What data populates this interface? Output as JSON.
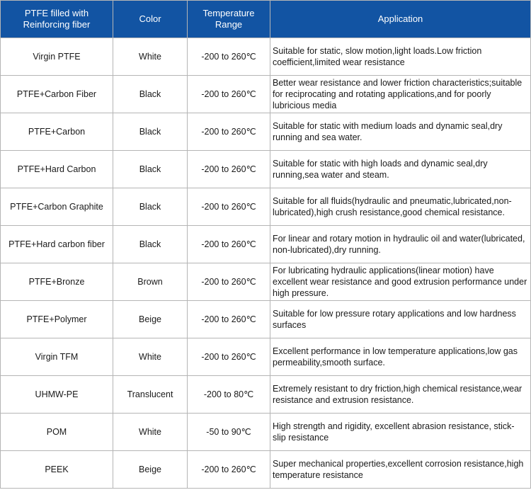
{
  "headers": {
    "material": "PTFE filled with Reinforcing fiber",
    "color": "Color",
    "temperature": "Temperature Range",
    "application": "Application"
  },
  "rows": [
    {
      "material": "Virgin PTFE",
      "color": "White",
      "temperature": "-200 to 260℃",
      "application": "Suitable for static, slow motion,light loads.Low friction coefficient,limited wear resistance"
    },
    {
      "material": "PTFE+Carbon Fiber",
      "color": "Black",
      "temperature": "-200 to 260℃",
      "application": "Better wear resistance and lower friction characteristics;suitable for reciprocating and rotating applications,and for poorly lubricious media"
    },
    {
      "material": "PTFE+Carbon",
      "color": "Black",
      "temperature": "-200 to 260℃",
      "application": "Suitable for static with medium loads and dynamic seal,dry running and sea water."
    },
    {
      "material": "PTFE+Hard Carbon",
      "color": "Black",
      "temperature": "-200 to 260℃",
      "application": "Suitable for static with high loads and dynamic seal,dry running,sea water and steam."
    },
    {
      "material": "PTFE+Carbon Graphite",
      "color": "Black",
      "temperature": "-200 to 260℃",
      "application": "Suitable for all fluids(hydraulic and pneumatic,lubricated,non-lubricated),high crush resistance,good chemical resistance."
    },
    {
      "material": "PTFE+Hard carbon fiber",
      "color": "Black",
      "temperature": "-200 to 260℃",
      "application": "For linear and rotary motion in hydraulic oil and water(lubricated, non-lubricated),dry running."
    },
    {
      "material": "PTFE+Bronze",
      "color": "Brown",
      "temperature": "-200 to 260℃",
      "application": "For lubricating hydraulic applications(linear motion) have excellent wear resistance and good extrusion performance under high pressure."
    },
    {
      "material": "PTFE+Polymer",
      "color": "Beige",
      "temperature": "-200 to 260℃",
      "application": "Suitable for low pressure rotary applications and low hardness surfaces"
    },
    {
      "material": "Virgin TFM",
      "color": "White",
      "temperature": "-200 to 260℃",
      "application": "Excellent performance in low temperature applications,low gas permeability,smooth surface."
    },
    {
      "material": "UHMW-PE",
      "color": "Translucent",
      "temperature": "-200 to 80℃",
      "application": "Extremely resistant to dry friction,high chemical resistance,wear resistance and extrusion resistance."
    },
    {
      "material": "POM",
      "color": "White",
      "temperature": "-50 to 90℃",
      "application": "High strength and rigidity, excellent abrasion resistance, stick-slip resistance"
    },
    {
      "material": "PEEK",
      "color": "Beige",
      "temperature": "-200 to 260℃",
      "application": "Super mechanical properties,excellent corrosion resistance,high temperature resistance"
    }
  ],
  "colors": {
    "header_bg": "#1254a3",
    "header_text": "#ffffff",
    "grid": "#b5b5b5",
    "body_text": "#1a1a1a"
  }
}
